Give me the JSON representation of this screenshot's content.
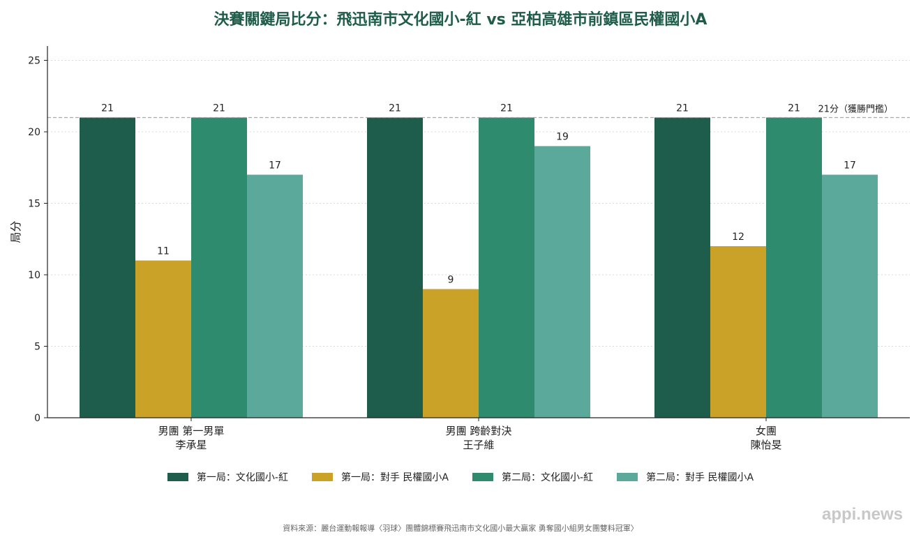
{
  "chart_data": {
    "type": "bar",
    "title": "決賽關鍵局比分：飛迅南市文化國小-紅 vs 亞柏高雄市前鎮區民權國小A",
    "ylabel": "局分",
    "xlabel": "",
    "ylim": [
      0,
      26
    ],
    "yticks": [
      0,
      5,
      10,
      15,
      20,
      25
    ],
    "categories": [
      [
        "男團 第一男單",
        "李承星"
      ],
      [
        "男團 跨齡對決",
        "王子維"
      ],
      [
        "女團",
        "陳怡旻"
      ]
    ],
    "series": [
      {
        "name": "第一局：文化國小-紅",
        "color": "#1e5c4b",
        "values": [
          21,
          21,
          21
        ]
      },
      {
        "name": "第一局：對手 民權國小A",
        "color": "#c9a227",
        "values": [
          11,
          9,
          12
        ]
      },
      {
        "name": "第二局：文化國小-紅",
        "color": "#2e8b6e",
        "values": [
          21,
          21,
          21
        ]
      },
      {
        "name": "第二局：對手 民權國小A",
        "color": "#5aa99a",
        "values": [
          17,
          19,
          17
        ]
      }
    ],
    "reference_line": {
      "value": 21,
      "label": "21分（獲勝門檻）"
    },
    "grid": "horizontal-dotted",
    "legend_position": "bottom"
  },
  "source_note": "資料來源：麗台運動報報導〈羽球〉團體錦標賽飛迅南市文化國小最大贏家 勇奪國小組男女團雙料冠軍〉",
  "watermark": "appi.news"
}
